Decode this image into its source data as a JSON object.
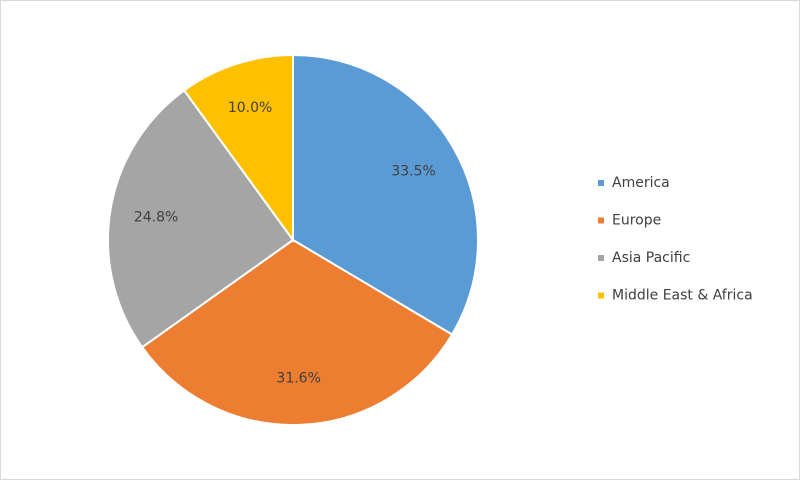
{
  "chart_data": {
    "type": "pie",
    "categories": [
      "America",
      "Europe",
      "Asia Pacific",
      "Middle East & Africa"
    ],
    "values": [
      33.5,
      31.6,
      24.8,
      10.0
    ],
    "value_labels": [
      "33.5%",
      "31.6%",
      "24.8%",
      "10.0%"
    ],
    "colors": [
      "#5b9bd5",
      "#ed7d31",
      "#a5a5a5",
      "#ffc000"
    ],
    "legend": "right"
  }
}
